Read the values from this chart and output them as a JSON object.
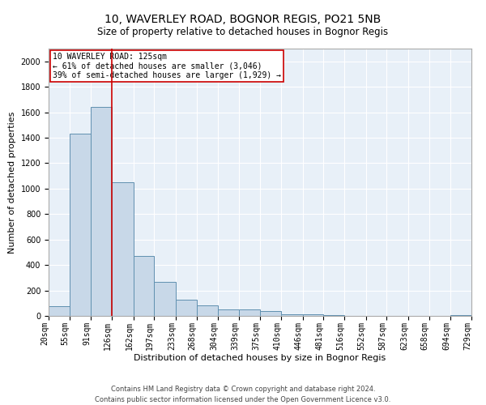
{
  "title_line1": "10, WAVERLEY ROAD, BOGNOR REGIS, PO21 5NB",
  "title_line2": "Size of property relative to detached houses in Bognor Regis",
  "xlabel": "Distribution of detached houses by size in Bognor Regis",
  "ylabel": "Number of detached properties",
  "footer_line1": "Contains HM Land Registry data © Crown copyright and database right 2024.",
  "footer_line2": "Contains public sector information licensed under the Open Government Licence v3.0.",
  "annotation_line1": "10 WAVERLEY ROAD: 125sqm",
  "annotation_line2": "← 61% of detached houses are smaller (3,046)",
  "annotation_line3": "39% of semi-detached houses are larger (1,929) →",
  "bin_edges": [
    20,
    55,
    91,
    126,
    162,
    197,
    233,
    268,
    304,
    339,
    375,
    410,
    446,
    481,
    516,
    552,
    587,
    623,
    658,
    694,
    729
  ],
  "bar_heights": [
    75,
    1430,
    1640,
    1050,
    470,
    270,
    130,
    80,
    50,
    50,
    40,
    10,
    10,
    8,
    0,
    0,
    0,
    0,
    0,
    5
  ],
  "bar_color": "#c8d8e8",
  "bar_edge_color": "#6090b0",
  "vline_color": "#cc0000",
  "vline_x": 126,
  "ylim": [
    0,
    2100
  ],
  "yticks": [
    0,
    200,
    400,
    600,
    800,
    1000,
    1200,
    1400,
    1600,
    1800,
    2000
  ],
  "background_color": "#ffffff",
  "plot_bg_color": "#e8f0f8",
  "grid_color": "#ffffff",
  "annotation_box_color": "#ffffff",
  "annotation_box_edge": "#cc0000",
  "title1_fontsize": 10,
  "title2_fontsize": 8.5,
  "xlabel_fontsize": 8,
  "ylabel_fontsize": 8,
  "tick_fontsize": 7,
  "annotation_fontsize": 7,
  "footer_fontsize": 6
}
